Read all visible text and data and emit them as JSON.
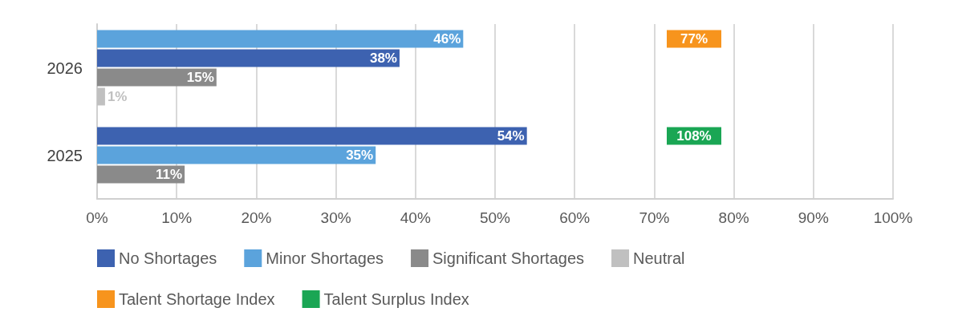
{
  "chart_data": {
    "type": "bar",
    "orientation": "horizontal",
    "categories": [
      "2026",
      "2025"
    ],
    "series": [
      {
        "name": "No Shortages",
        "color": "#3d62b0",
        "values": [
          38,
          54
        ],
        "value_labels": [
          "38%",
          "54%"
        ]
      },
      {
        "name": "Minor Shortages",
        "color": "#5ba3dc",
        "values": [
          46,
          35
        ],
        "value_labels": [
          "46%",
          "35%"
        ]
      },
      {
        "name": "Significant Shortages",
        "color": "#8a8a8a",
        "values": [
          15,
          11
        ],
        "value_labels": [
          "15%",
          "11%"
        ]
      },
      {
        "name": "Neutral",
        "color": "#c0c0c0",
        "values": [
          1,
          null
        ],
        "value_labels": [
          "1%",
          null
        ]
      },
      {
        "name": "Talent Shortage Index",
        "type": "other",
        "color": "#f7941d",
        "values": [
          null,
          null
        ],
        "value_labels": [
          "77%",
          null
        ]
      },
      {
        "name": "Talent Surplus Index",
        "type": "other",
        "color": "#1aa654",
        "values": [
          null,
          null
        ],
        "value_labels": [
          null,
          "108%"
        ]
      }
    ],
    "xlim": [
      0,
      100
    ],
    "xticks": [
      {
        "value": 0,
        "label": "0%"
      },
      {
        "value": 10,
        "label": "10%"
      },
      {
        "value": 20,
        "label": "20%"
      },
      {
        "value": 30,
        "label": "30%"
      },
      {
        "value": 40,
        "label": "40%"
      },
      {
        "value": 50,
        "label": "50%"
      },
      {
        "value": 60,
        "label": "60%"
      },
      {
        "value": 70,
        "label": "70%"
      },
      {
        "value": 80,
        "label": "80%"
      },
      {
        "value": 90,
        "label": "90%"
      },
      {
        "value": 100,
        "label": "100%"
      }
    ],
    "grid": "x",
    "legend": "bottom"
  }
}
